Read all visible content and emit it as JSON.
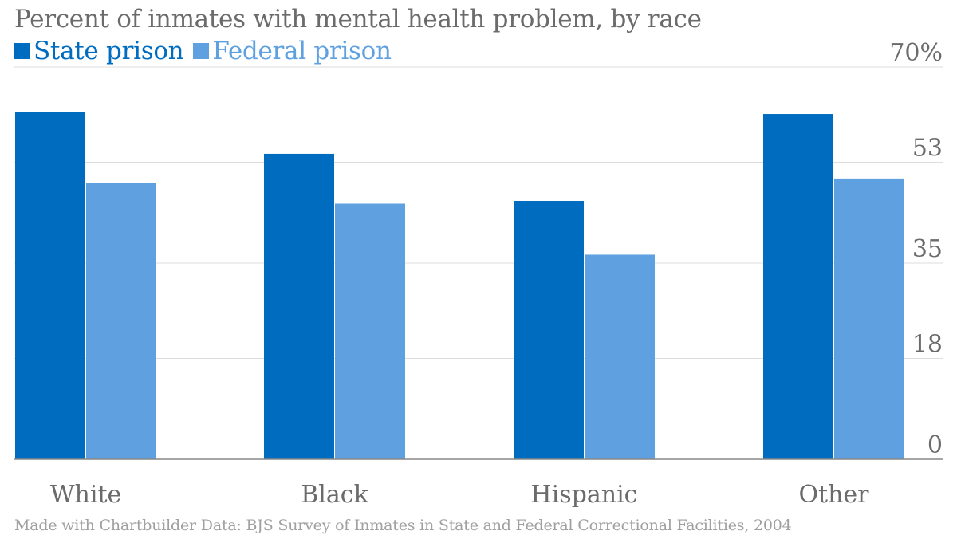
{
  "title": "Percent of inmates with mental health problem, by race",
  "source": "Made with Chartbuilder Data: BJS Survey of Inmates in State and Federal Correctional Facilities, 2004",
  "colors": {
    "state": "#006cc0",
    "federal": "#5fa0e0",
    "grid": "#dddddd",
    "axis": "#888888",
    "tick_text": "#6b6b6b"
  },
  "chart_data": {
    "type": "bar",
    "categories": [
      "White",
      "Black",
      "Hispanic",
      "Other"
    ],
    "series": [
      {
        "name": "State prison",
        "values": [
          62,
          54.5,
          46.1,
          61.6
        ]
      },
      {
        "name": "Federal prison",
        "values": [
          49.3,
          45.6,
          36.5,
          50.1
        ]
      }
    ],
    "y_ticks": [
      0,
      18,
      35,
      53,
      70
    ],
    "y_tick_labels": [
      "0",
      "18",
      "35",
      "53",
      "70%"
    ],
    "ylim": [
      0,
      70
    ],
    "axis_side": "right",
    "grid": true,
    "legend_position": "top-left"
  }
}
